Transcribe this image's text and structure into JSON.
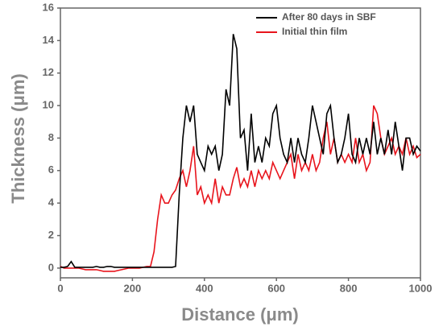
{
  "chart_data": {
    "type": "line",
    "x": [
      0,
      10,
      20,
      30,
      40,
      50,
      60,
      70,
      80,
      90,
      100,
      110,
      120,
      130,
      140,
      150,
      160,
      170,
      180,
      190,
      200,
      210,
      220,
      230,
      240,
      250,
      260,
      270,
      280,
      290,
      300,
      310,
      320,
      330,
      340,
      350,
      360,
      370,
      380,
      390,
      400,
      410,
      420,
      430,
      440,
      450,
      460,
      470,
      480,
      490,
      500,
      510,
      520,
      530,
      540,
      550,
      560,
      570,
      580,
      590,
      600,
      610,
      620,
      630,
      640,
      650,
      660,
      670,
      680,
      690,
      700,
      710,
      720,
      730,
      740,
      750,
      760,
      770,
      780,
      790,
      800,
      810,
      820,
      830,
      840,
      850,
      860,
      870,
      880,
      890,
      900,
      910,
      920,
      930,
      940,
      950,
      960,
      970,
      980,
      990,
      1000
    ],
    "series": [
      {
        "name": "After 80 days in SBF",
        "color": "#000000",
        "values": [
          0.05,
          0.05,
          0.1,
          0.4,
          0.05,
          0.05,
          0.05,
          0.05,
          0.05,
          0.05,
          0.1,
          0.05,
          0.05,
          0.1,
          0.1,
          0.05,
          0.05,
          0.05,
          0.05,
          0.05,
          0.05,
          0.05,
          0.05,
          0.05,
          0.05,
          0.05,
          0.05,
          0.05,
          0.05,
          0.05,
          0.05,
          0.05,
          0.1,
          4.5,
          8,
          10,
          9,
          10,
          7,
          6.5,
          6,
          7.5,
          7,
          7.5,
          6,
          7,
          11,
          10,
          14.4,
          13.5,
          8,
          8.5,
          6,
          9.5,
          6.5,
          7.5,
          6.5,
          8,
          7.5,
          9.5,
          10,
          8,
          7,
          6.5,
          8,
          6.5,
          8,
          7,
          6.5,
          8,
          10,
          9,
          8,
          7,
          9.5,
          10,
          8,
          6.5,
          7,
          8,
          9.5,
          7,
          6.5,
          8,
          7,
          8,
          7,
          9,
          7,
          8,
          7,
          8.5,
          7,
          9,
          7.5,
          6,
          8,
          8,
          7,
          7.5,
          7.2
        ]
      },
      {
        "name": "Initial thin film",
        "color": "#e8141c",
        "values": [
          0.1,
          0,
          0,
          0,
          0,
          0,
          -0.05,
          -0.1,
          -0.1,
          -0.1,
          -0.1,
          -0.15,
          -0.2,
          -0.2,
          -0.2,
          -0.2,
          -0.15,
          -0.1,
          -0.05,
          0,
          0,
          0,
          0,
          0.05,
          0.1,
          0.1,
          1,
          3,
          4.5,
          4,
          4,
          4.5,
          4.8,
          5.5,
          6,
          5,
          6,
          7.5,
          4.5,
          5,
          4,
          4.5,
          4,
          5.5,
          4,
          5,
          4.5,
          4.5,
          5.5,
          6.2,
          5,
          5.5,
          5,
          6,
          5,
          6,
          5.5,
          6,
          5.5,
          6.5,
          6,
          5.5,
          6,
          6.5,
          7,
          5.5,
          7,
          6,
          6.5,
          6,
          7,
          6,
          6.5,
          8,
          9,
          7,
          8,
          6.5,
          7,
          6.5,
          7,
          6.5,
          8,
          6.5,
          7,
          6,
          6.5,
          10,
          9.5,
          8,
          7,
          7.5,
          8,
          7,
          7.5,
          7,
          8,
          7,
          7.5,
          6.8,
          7
        ]
      }
    ],
    "xlabel": "Distance (μm)",
    "ylabel": "Thickness (μm)",
    "xlim": [
      0,
      1000
    ],
    "ylim": [
      -0.6,
      16
    ],
    "xticks": [
      0,
      200,
      400,
      600,
      800,
      1000
    ],
    "yticks": [
      0,
      2,
      4,
      6,
      8,
      10,
      12,
      14,
      16
    ],
    "legend": "upper right"
  }
}
